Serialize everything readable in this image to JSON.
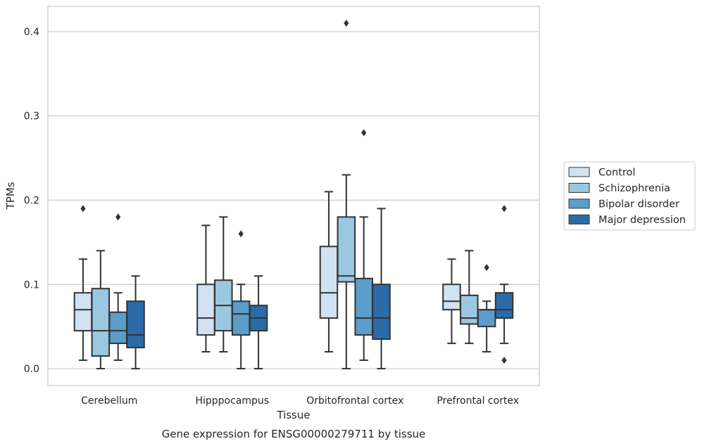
{
  "chart_data": {
    "type": "box",
    "xlabel": "Tissue",
    "ylabel": "TPMs",
    "caption": "Gene expression for ENSG00000279711 by tissue",
    "ylim": [
      -0.02,
      0.43
    ],
    "yticks": [
      "0.0",
      "0.1",
      "0.2",
      "0.3",
      "0.4"
    ],
    "ytick_values": [
      0.0,
      0.1,
      0.2,
      0.3,
      0.4
    ],
    "grid": "horizontal",
    "legend_placement": "outside-right",
    "categories": [
      "Cerebellum",
      "Hipppocampus",
      "Orbitofrontal cortex",
      "Prefrontal cortex"
    ],
    "series": [
      {
        "name": "Control",
        "color": "#d1e2f2",
        "boxes": [
          {
            "whislo": 0.01,
            "q1": 0.045,
            "med": 0.07,
            "q3": 0.09,
            "whishi": 0.13,
            "fliers": [
              0.19
            ]
          },
          {
            "whislo": 0.02,
            "q1": 0.04,
            "med": 0.06,
            "q3": 0.1,
            "whishi": 0.17,
            "fliers": []
          },
          {
            "whislo": 0.02,
            "q1": 0.06,
            "med": 0.09,
            "q3": 0.145,
            "whishi": 0.21,
            "fliers": []
          },
          {
            "whislo": 0.03,
            "q1": 0.07,
            "med": 0.08,
            "q3": 0.1,
            "whishi": 0.13,
            "fliers": []
          }
        ]
      },
      {
        "name": "Schizophrenia",
        "color": "#9ac8e0",
        "boxes": [
          {
            "whislo": 0.0,
            "q1": 0.015,
            "med": 0.045,
            "q3": 0.095,
            "whishi": 0.14,
            "fliers": []
          },
          {
            "whislo": 0.02,
            "q1": 0.045,
            "med": 0.075,
            "q3": 0.105,
            "whishi": 0.18,
            "fliers": []
          },
          {
            "whislo": 0.0,
            "q1": 0.103,
            "med": 0.11,
            "q3": 0.18,
            "whishi": 0.23,
            "fliers": [
              0.41
            ]
          },
          {
            "whislo": 0.03,
            "q1": 0.053,
            "med": 0.06,
            "q3": 0.087,
            "whishi": 0.14,
            "fliers": []
          }
        ]
      },
      {
        "name": "Bipolar disorder",
        "color": "#5a9ec9",
        "boxes": [
          {
            "whislo": 0.01,
            "q1": 0.03,
            "med": 0.045,
            "q3": 0.067,
            "whishi": 0.09,
            "fliers": [
              0.18
            ]
          },
          {
            "whislo": 0.0,
            "q1": 0.04,
            "med": 0.065,
            "q3": 0.08,
            "whishi": 0.1,
            "fliers": [
              0.16
            ]
          },
          {
            "whislo": 0.01,
            "q1": 0.04,
            "med": 0.06,
            "q3": 0.107,
            "whishi": 0.18,
            "fliers": [
              0.28
            ]
          },
          {
            "whislo": 0.02,
            "q1": 0.05,
            "med": 0.07,
            "q3": 0.07,
            "whishi": 0.08,
            "fliers": [
              0.12
            ]
          }
        ]
      },
      {
        "name": "Major depression",
        "color": "#2b6ba8",
        "boxes": [
          {
            "whislo": 0.0,
            "q1": 0.025,
            "med": 0.04,
            "q3": 0.08,
            "whishi": 0.11,
            "fliers": []
          },
          {
            "whislo": 0.0,
            "q1": 0.045,
            "med": 0.06,
            "q3": 0.075,
            "whishi": 0.11,
            "fliers": []
          },
          {
            "whislo": 0.0,
            "q1": 0.035,
            "med": 0.06,
            "q3": 0.1,
            "whishi": 0.19,
            "fliers": []
          },
          {
            "whislo": 0.03,
            "q1": 0.06,
            "med": 0.07,
            "q3": 0.09,
            "whishi": 0.1,
            "fliers": [
              0.19,
              0.01
            ]
          }
        ]
      }
    ]
  }
}
